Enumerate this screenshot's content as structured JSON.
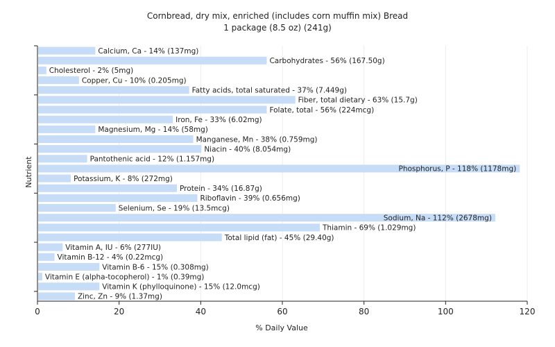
{
  "chart_data": {
    "type": "bar",
    "orientation": "horizontal",
    "title": "Cornbread, dry mix, enriched (includes corn muffin mix) Bread",
    "subtitle": "1 package (8.5 oz) (241g)",
    "xlabel": "% Daily Value",
    "ylabel": "Nutrient",
    "xlim": [
      0,
      120
    ],
    "xticks": [
      0,
      20,
      40,
      60,
      80,
      100,
      120
    ],
    "grid": true,
    "bar_color": "#c6dcf7",
    "categories": [
      "Calcium, Ca",
      "Carbohydrates",
      "Cholesterol",
      "Copper, Cu",
      "Fatty acids, total saturated",
      "Fiber, total dietary",
      "Folate, total",
      "Iron, Fe",
      "Magnesium, Mg",
      "Manganese, Mn",
      "Niacin",
      "Pantothenic acid",
      "Phosphorus, P",
      "Potassium, K",
      "Protein",
      "Riboflavin",
      "Selenium, Se",
      "Sodium, Na",
      "Thiamin",
      "Total lipid (fat)",
      "Vitamin A, IU",
      "Vitamin B-12",
      "Vitamin B-6",
      "Vitamin E (alpha-tocopherol)",
      "Vitamin K (phylloquinone)",
      "Zinc, Zn"
    ],
    "values": [
      14,
      56,
      2,
      10,
      37,
      63,
      56,
      33,
      14,
      38,
      40,
      12,
      118,
      8,
      34,
      39,
      19,
      112,
      69,
      45,
      6,
      4,
      15,
      1,
      15,
      9
    ],
    "labels": [
      "Calcium, Ca - 14% (137mg)",
      "Carbohydrates - 56% (167.50g)",
      "Cholesterol - 2% (5mg)",
      "Copper, Cu - 10% (0.205mg)",
      "Fatty acids, total saturated - 37% (7.449g)",
      "Fiber, total dietary - 63% (15.7g)",
      "Folate, total - 56% (224mcg)",
      "Iron, Fe - 33% (6.02mg)",
      "Magnesium, Mg - 14% (58mg)",
      "Manganese, Mn - 38% (0.759mg)",
      "Niacin - 40% (8.054mg)",
      "Pantothenic acid - 12% (1.157mg)",
      "Phosphorus, P - 118% (1178mg)",
      "Potassium, K - 8% (272mg)",
      "Protein - 34% (16.87g)",
      "Riboflavin - 39% (0.656mg)",
      "Selenium, Se - 19% (13.5mcg)",
      "Sodium, Na - 112% (2678mg)",
      "Thiamin - 69% (1.029mg)",
      "Total lipid (fat) - 45% (29.40g)",
      "Vitamin A, IU - 6% (277IU)",
      "Vitamin B-12 - 4% (0.22mcg)",
      "Vitamin B-6 - 15% (0.308mg)",
      "Vitamin E (alpha-tocopherol) - 1% (0.39mg)",
      "Vitamin K (phylloquinone) - 15% (12.0mcg)",
      "Zinc, Zn - 9% (1.37mg)"
    ]
  }
}
